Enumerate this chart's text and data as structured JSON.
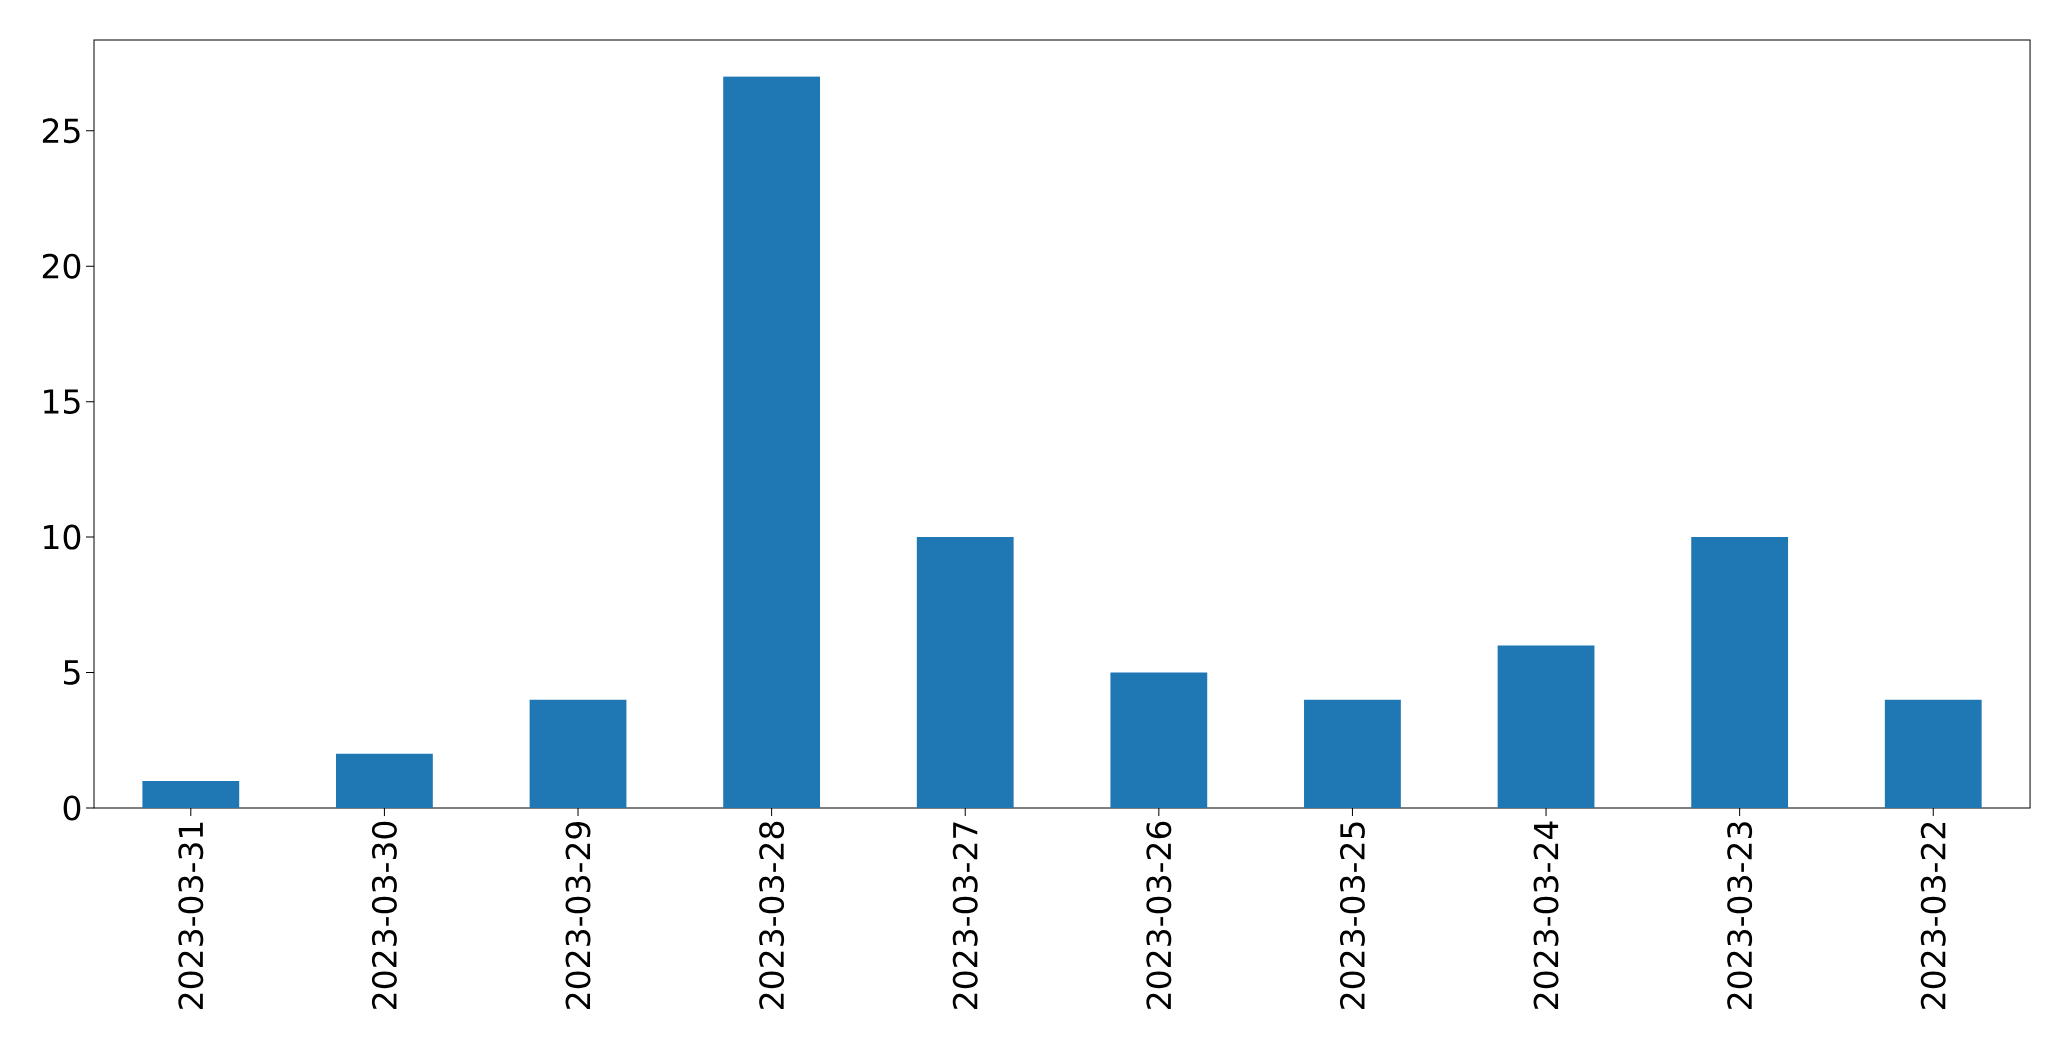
{
  "chart_data": {
    "type": "bar",
    "categories": [
      "2023-03-31",
      "2023-03-30",
      "2023-03-29",
      "2023-03-28",
      "2023-03-27",
      "2023-03-26",
      "2023-03-25",
      "2023-03-24",
      "2023-03-23",
      "2023-03-22"
    ],
    "values": [
      1,
      2,
      4,
      27,
      10,
      5,
      4,
      6,
      10,
      4
    ],
    "color": "#1f77b4",
    "ylim": [
      0,
      28.35
    ],
    "yticks": [
      0,
      5,
      10,
      15,
      20,
      25
    ],
    "grid": false
  }
}
